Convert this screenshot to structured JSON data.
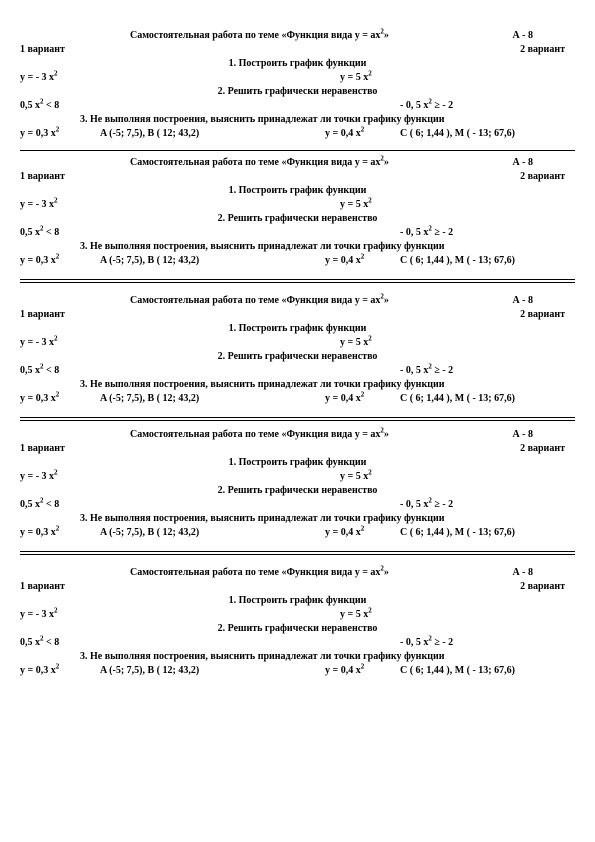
{
  "worksheet": {
    "title": "Самостоятельная работа по теме «Функция вида y = ax²»",
    "level": "А - 8",
    "variant1": "1 вариант",
    "variant2": "2 вариант",
    "task1_heading": "1. Построить график функции",
    "task1_left": "y = - 3 x²",
    "task1_right": "y = 5 x²",
    "task2_heading": "2. Решить графически неравенство",
    "task2_left": "0,5 x² < 8",
    "task2_right": "- 0, 5 x² ≥ - 2",
    "task3_heading": "3. Не выполняя построения, выяснить принадлежат ли точки графику функции",
    "ans_y1": "y = 0,3 x²",
    "ans_pts1": "A (-5; 7,5), B ( 12; 43,2)",
    "ans_y2": "y = 0,4 x²",
    "ans_pts2": "C ( 6; 1,44 ), M ( - 13; 67,6)"
  }
}
